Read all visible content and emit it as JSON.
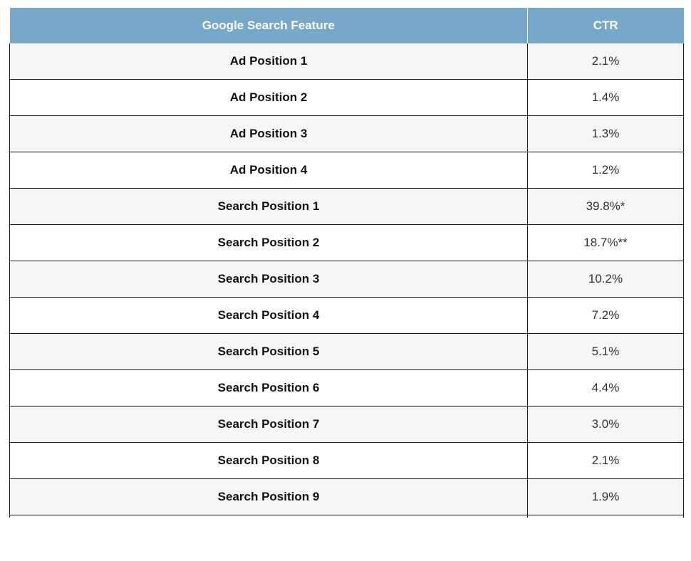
{
  "table": {
    "headers": [
      "Google Search Feature",
      "CTR"
    ],
    "rows": [
      [
        "Ad Position 1",
        "2.1%"
      ],
      [
        "Ad Position 2",
        "1.4%"
      ],
      [
        "Ad Position 3",
        "1.3%"
      ],
      [
        "Ad Position 4",
        "1.2%"
      ],
      [
        "Search Position 1",
        "39.8%*"
      ],
      [
        "Search Position 2",
        "18.7%**"
      ],
      [
        "Search Position 3",
        "10.2%"
      ],
      [
        "Search Position 4",
        "7.2%"
      ],
      [
        "Search Position 5",
        "5.1%"
      ],
      [
        "Search Position 6",
        "4.4%"
      ],
      [
        "Search Position 7",
        "3.0%"
      ],
      [
        "Search Position 8",
        "2.1%"
      ],
      [
        "Search Position 9",
        "1.9%"
      ]
    ]
  },
  "colors": {
    "header_bg": "#77a7c9",
    "header_text": "#ffffff",
    "row_alt_bg": "#f6f6f6",
    "border": "#1a1a1a"
  }
}
